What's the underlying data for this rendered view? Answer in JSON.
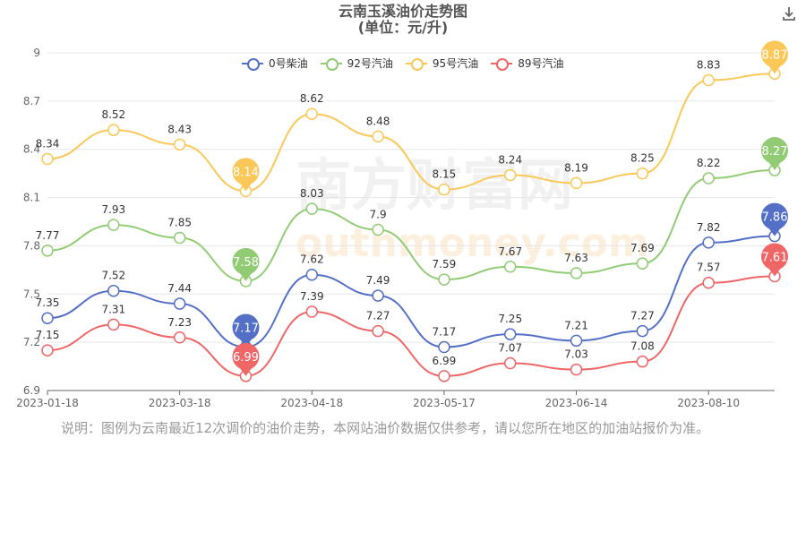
{
  "title": {
    "line1": "云南玉溪油价走势图",
    "line2": "(单位：元/升)"
  },
  "ui": {
    "download_icon": "download-icon"
  },
  "watermark": {
    "cn": "南方财富网",
    "en": "outhmoney.com"
  },
  "note": "说明：图例为云南最近12次调价的油价走势，本网站油价数据仅供参考，请以您所在地区的加油站报价为准。",
  "chart_data": {
    "type": "line",
    "title": "云南玉溪油价走势图 (单位：元/升)",
    "xlabel": "",
    "ylabel": "",
    "ylim": [
      6.9,
      9.0
    ],
    "yticks": [
      6.9,
      7.2,
      7.5,
      7.8,
      8.1,
      8.4,
      8.7,
      9
    ],
    "grid": "horizontal",
    "legend": "top",
    "xtick_labels": [
      "2023-01-18",
      "2023-03-18",
      "2023-04-18",
      "2023-05-17",
      "2023-06-14",
      "2023-08-10"
    ],
    "xtick_indices": [
      0,
      2,
      4,
      6,
      8,
      10
    ],
    "series": [
      {
        "name": "0号柴油",
        "color": "#5470c6",
        "values": [
          7.35,
          7.52,
          7.44,
          7.17,
          7.62,
          7.49,
          7.17,
          7.25,
          7.21,
          7.27,
          7.82,
          7.86
        ],
        "markers": [
          {
            "index": 3,
            "label": "7.17"
          },
          {
            "index": 11,
            "label": "7.86"
          }
        ]
      },
      {
        "name": "92号汽油",
        "color": "#91cc75",
        "values": [
          7.77,
          7.93,
          7.85,
          7.58,
          8.03,
          7.9,
          7.59,
          7.67,
          7.63,
          7.69,
          8.22,
          8.27
        ],
        "markers": [
          {
            "index": 3,
            "label": "7.58"
          },
          {
            "index": 11,
            "label": "8.27"
          }
        ]
      },
      {
        "name": "95号汽油",
        "color": "#fac858",
        "values": [
          8.34,
          8.52,
          8.43,
          8.14,
          8.62,
          8.48,
          8.15,
          8.24,
          8.19,
          8.25,
          8.83,
          8.87
        ],
        "markers": [
          {
            "index": 3,
            "label": "8.14"
          },
          {
            "index": 11,
            "label": "8.87"
          }
        ]
      },
      {
        "name": "89号汽油",
        "color": "#ee6666",
        "values": [
          7.15,
          7.31,
          7.23,
          6.99,
          7.39,
          7.27,
          6.99,
          7.07,
          7.03,
          7.08,
          7.57,
          7.61
        ],
        "markers": [
          {
            "index": 3,
            "label": "6.99"
          },
          {
            "index": 11,
            "label": "7.61"
          }
        ]
      }
    ]
  }
}
